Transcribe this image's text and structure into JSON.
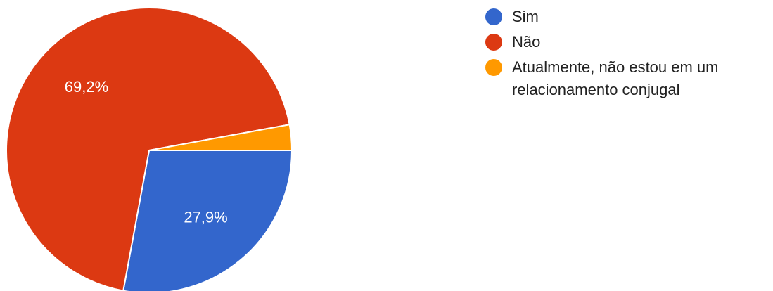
{
  "chart_data": {
    "type": "pie",
    "slices": [
      {
        "name": "Sim",
        "value": 27.9,
        "label": "27,9%",
        "color": "#3366cc"
      },
      {
        "name": "Não",
        "value": 69.2,
        "label": "69,2%",
        "color": "#dc3912"
      },
      {
        "name": "Atualmente, não estou em um relacionamento conjugal",
        "value": 2.9,
        "label": "",
        "color": "#ff9900"
      }
    ],
    "legend": {
      "placement": "right",
      "items": [
        {
          "text": "Sim",
          "color": "#3366cc"
        },
        {
          "text": "Não",
          "color": "#dc3912"
        },
        {
          "lines": [
            "Atualmente, não estou em um",
            "relacionamento conjugal"
          ],
          "color": "#ff9900"
        }
      ]
    }
  }
}
